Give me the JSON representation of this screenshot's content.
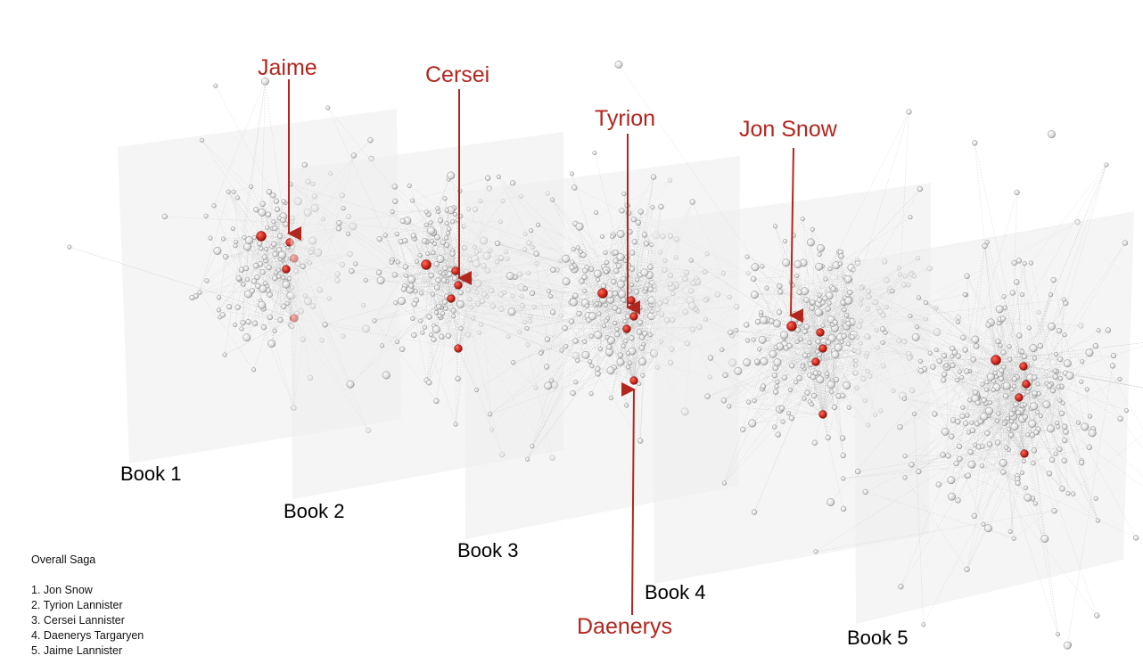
{
  "books": [
    {
      "label": "Book 1"
    },
    {
      "label": "Book 2"
    },
    {
      "label": "Book 3"
    },
    {
      "label": "Book 4"
    },
    {
      "label": "Book 5"
    }
  ],
  "characters": [
    {
      "label": "Jaime"
    },
    {
      "label": "Cersei"
    },
    {
      "label": "Tyrion"
    },
    {
      "label": "Jon Snow"
    },
    {
      "label": "Daenerys"
    }
  ],
  "saga": {
    "title": "Overall Saga",
    "ranking": [
      "1. Jon Snow",
      "2. Tyrion Lannister",
      "3. Cersei Lannister",
      "4. Daenerys Targaryen",
      "5. Jaime Lannister"
    ]
  },
  "colors": {
    "highlight": "#c9231b",
    "annotation": "#b3261e",
    "node": "#e4e4e4",
    "node_stroke": "#8a8a8a",
    "edge": "#bdbdbd",
    "plane": "#ececec"
  }
}
